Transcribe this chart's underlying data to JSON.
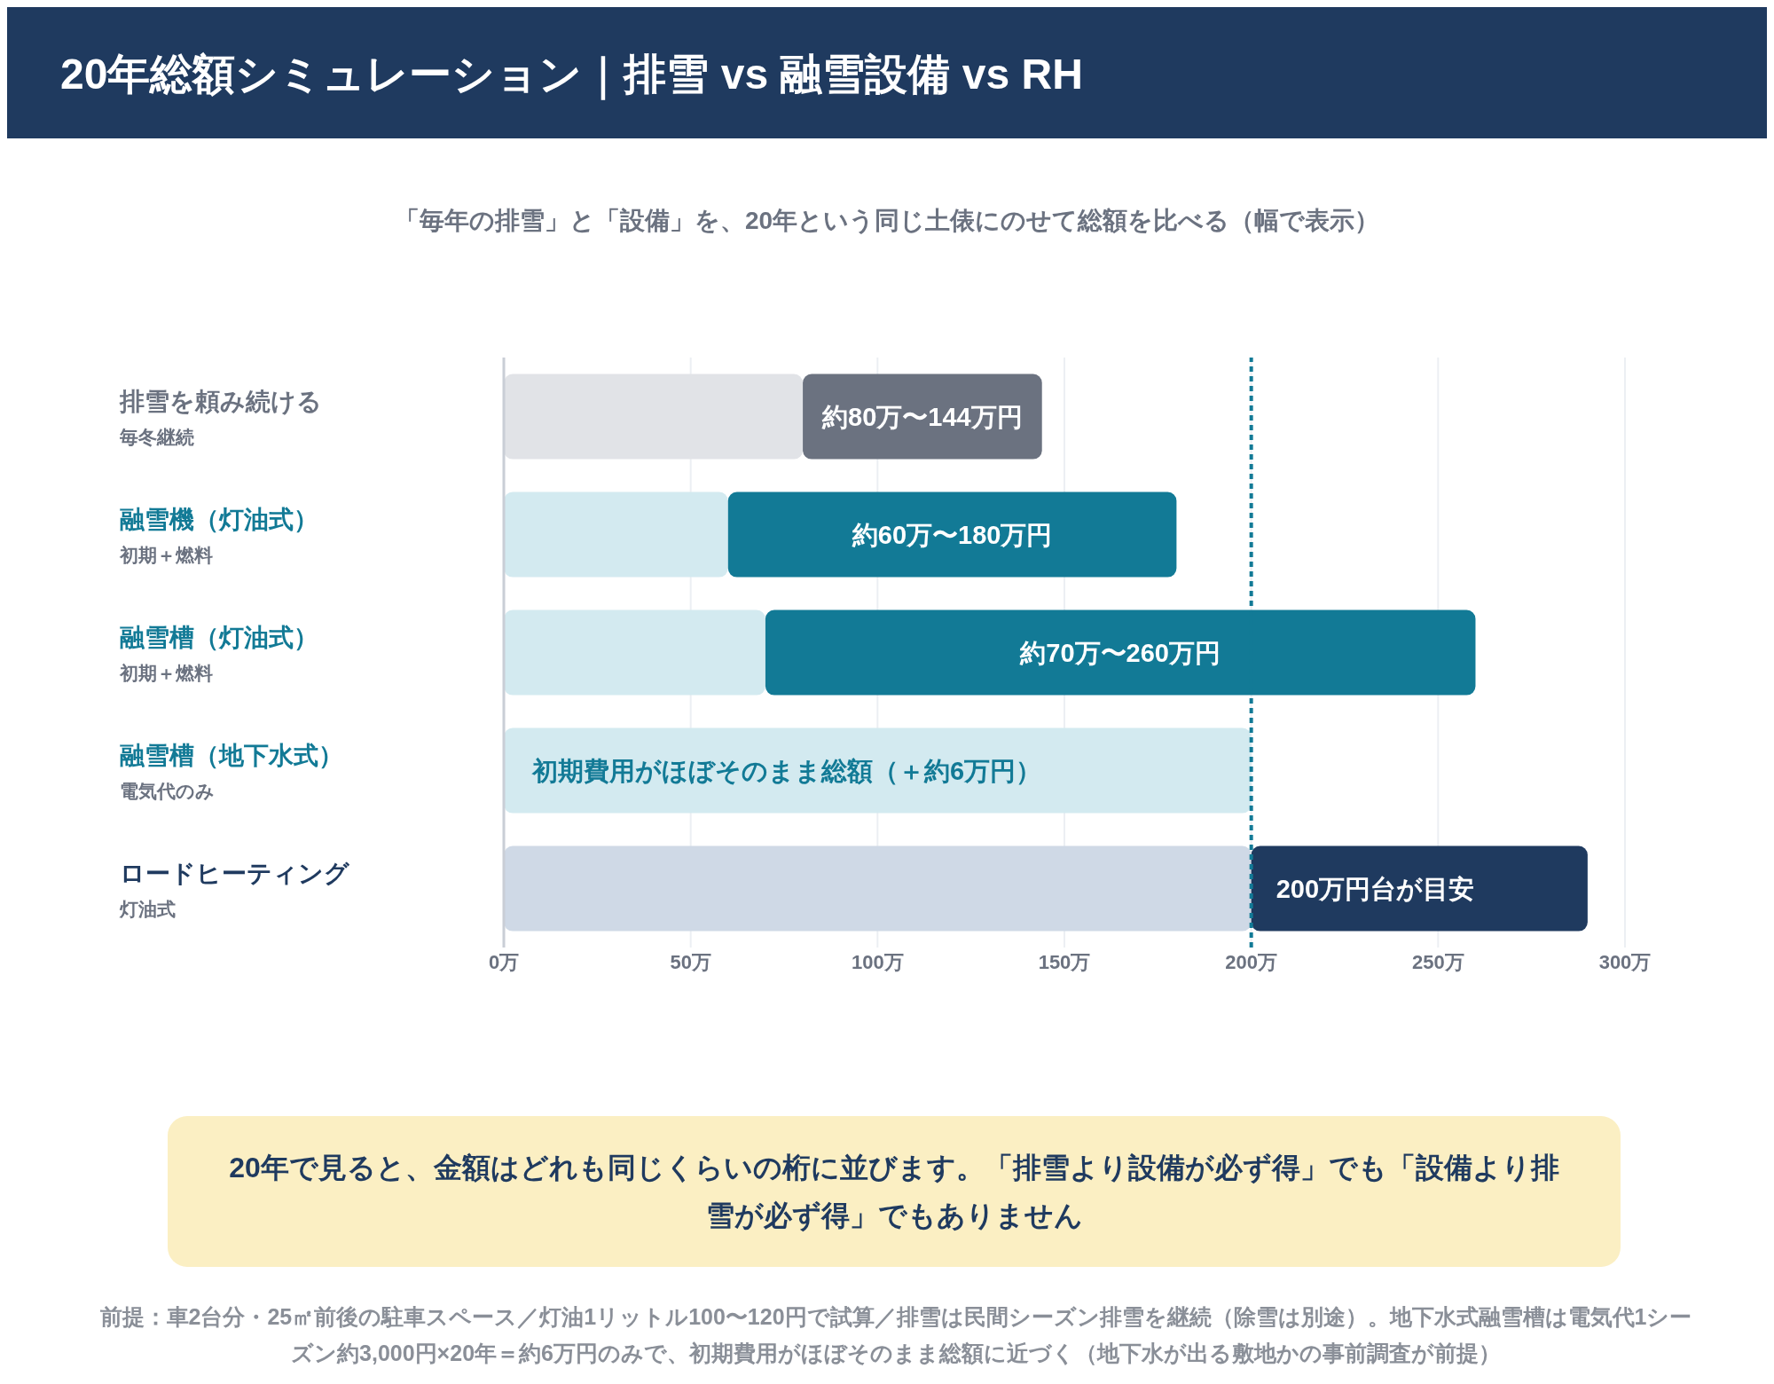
{
  "chart_data": {
    "type": "bar",
    "orientation": "horizontal",
    "stacked": true,
    "title": "20年総額シミュレーション｜排雪 vs 融雪設備 vs RH",
    "subtitle": "「毎年の排雪」と「設備」を、20年という同じ土俵にのせて総額を比べる（幅で表示）",
    "categories": [
      "排雪を頼み続ける",
      "融雪機（灯油式）",
      "融雪槽（灯油式）",
      "融雪槽（地下水式）",
      "ロードヒーティング"
    ],
    "series": [
      {
        "colors": [
          "#e1e3e7",
          "#d3eaf0",
          "#d3eaf0",
          "#d3eaf0",
          "#cfd9e6"
        ],
        "values": [
          80,
          60,
          70,
          200,
          200
        ],
        "value_labels": [
          null,
          null,
          null,
          "初期費用がほぼそのまま総額（＋約6万円）",
          null
        ]
      },
      {
        "colors": [
          "#6b7280",
          "#127a96",
          "#127a96",
          "#127a96",
          "#1f3a5f"
        ],
        "values": [
          64,
          120,
          190,
          null,
          90
        ],
        "value_labels": [
          "約80万〜144万円",
          "約60万〜180万円",
          "約70万〜260万円",
          null,
          null
        ]
      }
    ],
    "xlim": [
      0,
      300
    ],
    "xticks": [
      {
        "value": 0,
        "label": "0万"
      },
      {
        "value": 50,
        "label": "50万"
      },
      {
        "value": 100,
        "label": "100万"
      },
      {
        "value": 150,
        "label": "150万"
      },
      {
        "value": 200,
        "label": "200万"
      },
      {
        "value": 250,
        "label": "250万"
      },
      {
        "value": 300,
        "label": "300万"
      }
    ],
    "ref_lines": [
      {
        "axis": "x",
        "value": 200,
        "line_style": "dashed",
        "color": "#127a96"
      }
    ],
    "grid": "x",
    "legend": false,
    "annotations": [
      "20年で見ると、金額はどれも同じくらいの桁に並びます。「排雪より設備が必ず得」でも「設備より排雪が必ず得」でもありません",
      "前提：車2台分・25㎡前後の駐車スペース／灯油1リットル100〜120円で試算／排雪は民間シーズン排雪を継続（除雪は別途）。地下水式融雪槽は電気代1シーズン約3,000円×20年＝約6万円のみで、初期費用がほぼそのまま総額に近づく（地下水が出る敷地かの事前調査が前提）",
      "毎冬継続",
      "初期＋燃料",
      "初期＋燃料",
      "電気代のみ",
      "灯油式",
      "200万円台が目安"
    ]
  }
}
